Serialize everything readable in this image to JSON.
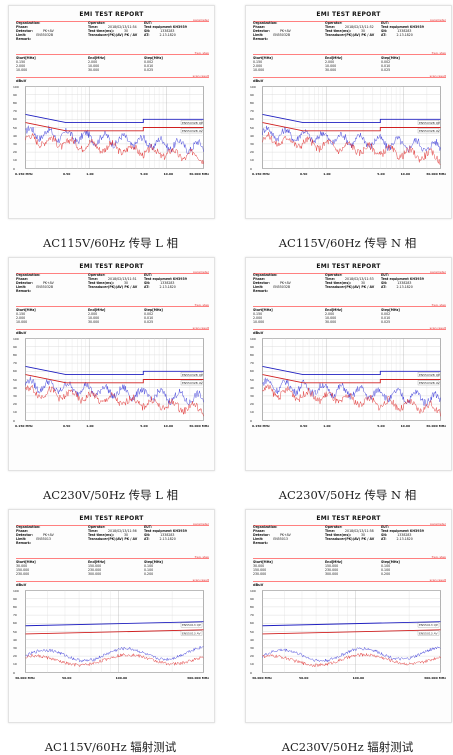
{
  "reports": [
    {
      "title": "EMI TEST REPORT",
      "note_param": "parameter",
      "note_freq": "freq. step",
      "note_scan": "scan result",
      "organization_label": "Organization:",
      "phase_label": "Phase:",
      "detector_label": "Detector:",
      "detector": "PK+AV",
      "limit_label": "Limit:",
      "limit": "EN55032B",
      "remark_label": "Remark:",
      "operator_label": "Operator:",
      "time_label": "Time:",
      "time": "2018/02/13/11:54",
      "test_time_label": "Test time(ms):",
      "test_time": "30",
      "transducer": "Transducer(PK)(AV) PK / AV",
      "eut_label": "EUT:",
      "eut": "Test equipment KH3939",
      "sn_label": "SN:",
      "sn": "1338283",
      "at_label": "AT:",
      "at": "2.13.1820",
      "col_start": "Start[MHz]",
      "col_end": "End[MHz]",
      "col_step": "Step[MHz]",
      "start": [
        "0.150",
        "2.000",
        "10.000"
      ],
      "end": [
        "2.000",
        "10.000",
        "30.000"
      ],
      "step": [
        "0.002",
        "0.010",
        "0.025"
      ],
      "unit": "dBuV",
      "y_ticks": [
        "100",
        "90",
        "80",
        "70",
        "60",
        "50",
        "40",
        "30",
        "20",
        "10",
        "0"
      ],
      "x_ticks": [
        "0.150 MHz",
        "0.50",
        "1.00",
        "5.00",
        "10.00",
        "30.000 MHz"
      ],
      "legend": [
        "EN55032B QP",
        "EN55032B AV"
      ],
      "caption": "AC115V/60Hz 传导 L 相"
    },
    {
      "title": "EMI TEST REPORT",
      "note_param": "parameter",
      "note_freq": "freq. step",
      "note_scan": "scan result",
      "organization_label": "Organization:",
      "phase_label": "Phase:",
      "detector_label": "Detector:",
      "detector": "PK+AV",
      "limit_label": "Limit:",
      "limit": "EN55032B",
      "remark_label": "Remark:",
      "operator_label": "Operator:",
      "time_label": "Time:",
      "time": "2018/02/13/11:52",
      "test_time_label": "Test time(ms):",
      "test_time": "30",
      "transducer": "Transducer(PK)(AV) PK / AV",
      "eut_label": "EUT:",
      "eut": "Test equipment KH3939",
      "sn_label": "SN:",
      "sn": "1338283",
      "at_label": "AT:",
      "at": "2.13.1820",
      "col_start": "Start[MHz]",
      "col_end": "End[MHz]",
      "col_step": "Step[MHz]",
      "start": [
        "0.150",
        "2.000",
        "10.000"
      ],
      "end": [
        "2.000",
        "10.000",
        "30.000"
      ],
      "step": [
        "0.002",
        "0.010",
        "0.025"
      ],
      "unit": "dBuV",
      "y_ticks": [
        "100",
        "90",
        "80",
        "70",
        "60",
        "50",
        "40",
        "30",
        "20",
        "10",
        "0"
      ],
      "x_ticks": [
        "0.150 MHz",
        "0.50",
        "1.00",
        "5.00",
        "10.00",
        "30.000 MHz"
      ],
      "legend": [
        "EN55032B QP",
        "EN55032B AV"
      ],
      "caption": "AC115V/60Hz 传导 N 相"
    },
    {
      "title": "EMI TEST REPORT",
      "note_param": "parameter",
      "note_freq": "freq. step",
      "note_scan": "scan result",
      "organization_label": "Organization:",
      "phase_label": "Phase:",
      "detector_label": "Detector:",
      "detector": "PK+AV",
      "limit_label": "Limit:",
      "limit": "EN55032B",
      "remark_label": "Remark:",
      "operator_label": "Operator:",
      "time_label": "Time:",
      "time": "2018/02/13/11:51",
      "test_time_label": "Test time(ms):",
      "test_time": "30",
      "transducer": "Transducer(PK)(AV) PK / AV",
      "eut_label": "EUT:",
      "eut": "Test equipment KH3939",
      "sn_label": "SN:",
      "sn": "1338283",
      "at_label": "AT:",
      "at": "2.13.1820",
      "col_start": "Start[MHz]",
      "col_end": "End[MHz]",
      "col_step": "Step[MHz]",
      "start": [
        "0.150",
        "2.000",
        "10.000"
      ],
      "end": [
        "2.000",
        "10.000",
        "30.000"
      ],
      "step": [
        "0.002",
        "0.010",
        "0.025"
      ],
      "unit": "dBuV",
      "y_ticks": [
        "100",
        "90",
        "80",
        "70",
        "60",
        "50",
        "40",
        "30",
        "20",
        "10",
        "0"
      ],
      "x_ticks": [
        "0.150 MHz",
        "0.50",
        "1.00",
        "5.00",
        "10.00",
        "30.000 MHz"
      ],
      "legend": [
        "EN55032B QP",
        "EN55032B AV"
      ],
      "caption": "AC230V/50Hz 传导 L 相"
    },
    {
      "title": "EMI TEST REPORT",
      "note_param": "parameter",
      "note_freq": "freq. step",
      "note_scan": "scan result",
      "organization_label": "Organization:",
      "phase_label": "Phase:",
      "detector_label": "Detector:",
      "detector": "PK+AV",
      "limit_label": "Limit:",
      "limit": "EN55032B",
      "remark_label": "Remark:",
      "operator_label": "Operator:",
      "time_label": "Time:",
      "time": "2018/02/13/11:53",
      "test_time_label": "Test time(ms):",
      "test_time": "30",
      "transducer": "Transducer(PK)(AV) PK / AV",
      "eut_label": "EUT:",
      "eut": "Test equipment KH3939",
      "sn_label": "SN:",
      "sn": "1338283",
      "at_label": "AT:",
      "at": "2.13.1820",
      "col_start": "Start[MHz]",
      "col_end": "End[MHz]",
      "col_step": "Step[MHz]",
      "start": [
        "0.150",
        "2.000",
        "10.000"
      ],
      "end": [
        "2.000",
        "10.000",
        "30.000"
      ],
      "step": [
        "0.002",
        "0.010",
        "0.025"
      ],
      "unit": "dBuV",
      "y_ticks": [
        "100",
        "90",
        "80",
        "70",
        "60",
        "50",
        "40",
        "30",
        "20",
        "10",
        "0"
      ],
      "x_ticks": [
        "0.150 MHz",
        "0.50",
        "1.00",
        "5.00",
        "10.00",
        "30.000 MHz"
      ],
      "legend": [
        "EN55032B QP",
        "EN55032B AV"
      ],
      "caption": "AC230V/50Hz 传导 N 相"
    },
    {
      "title": "EMI TEST REPORT",
      "note_param": "parameter",
      "note_freq": "freq. step",
      "note_scan": "scan result",
      "organization_label": "Organization:",
      "phase_label": "Phase:",
      "detector_label": "Detector:",
      "detector": "PK+AV",
      "limit_label": "Limit:",
      "limit": "EN55013",
      "remark_label": "Remark:",
      "operator_label": "Operator:",
      "time_label": "Time:",
      "time": "2018/02/13/11:56",
      "test_time_label": "Test time(ms):",
      "test_time": "30",
      "transducer": "Transducer(PK)(AV) PK / AV",
      "eut_label": "EUT:",
      "eut": "Test equipment KH3939",
      "sn_label": "SN:",
      "sn": "1338283",
      "at_label": "AT:",
      "at": "2.13.1820",
      "col_start": "Start[MHz]",
      "col_end": "End[MHz]",
      "col_step": "Step[MHz]",
      "start": [
        "30.000",
        "150.000",
        "230.000"
      ],
      "end": [
        "150.000",
        "230.000",
        "300.000"
      ],
      "step": [
        "0.100",
        "0.100",
        "0.200"
      ],
      "unit": "dBuV",
      "y_ticks": [
        "100",
        "90",
        "80",
        "70",
        "60",
        "50",
        "40",
        "30",
        "20",
        "10",
        "0"
      ],
      "x_ticks": [
        "30.000 MHz",
        "50.00",
        "100.00",
        "300.000 MHz"
      ],
      "legend": [
        "EN55013 QP",
        "EN55013 AV"
      ],
      "caption": "AC115V/60Hz 辐射测试"
    },
    {
      "title": "EMI TEST REPORT",
      "note_param": "parameter",
      "note_freq": "freq. step",
      "note_scan": "scan result",
      "organization_label": "Organization:",
      "phase_label": "Phase:",
      "detector_label": "Detector:",
      "detector": "PK+AV",
      "limit_label": "Limit:",
      "limit": "EN55013",
      "remark_label": "Remark:",
      "operator_label": "Operator:",
      "time_label": "Time:",
      "time": "2018/02/13/11:58",
      "test_time_label": "Test time(ms):",
      "test_time": "30",
      "transducer": "Transducer(PK)(AV) PK / AV",
      "eut_label": "EUT:",
      "eut": "Test equipment KH3939",
      "sn_label": "SN:",
      "sn": "1338283",
      "at_label": "AT:",
      "at": "2.13.1820",
      "col_start": "Start[MHz]",
      "col_end": "End[MHz]",
      "col_step": "Step[MHz]",
      "start": [
        "30.000",
        "150.000",
        "230.000"
      ],
      "end": [
        "150.000",
        "230.000",
        "300.000"
      ],
      "step": [
        "0.100",
        "0.100",
        "0.200"
      ],
      "unit": "dBuV",
      "y_ticks": [
        "100",
        "90",
        "80",
        "70",
        "60",
        "50",
        "40",
        "30",
        "20",
        "10",
        "0"
      ],
      "x_ticks": [
        "30.000 MHz",
        "50.00",
        "100.00",
        "300.000 MHz"
      ],
      "legend": [
        "EN55013 QP",
        "EN55013 AV"
      ],
      "caption": "AC230V/50Hz 辐射测试"
    }
  ],
  "chart_data": [
    {
      "type": "line",
      "xscale": "log",
      "xlim": [
        0.15,
        30
      ],
      "ylim": [
        0,
        100
      ],
      "series": [
        {
          "name": "EN55032B QP",
          "x": [
            0.15,
            0.5,
            0.5,
            5,
            5,
            30
          ],
          "values": [
            66,
            56,
            56,
            56,
            60,
            60
          ]
        },
        {
          "name": "EN55032B AV",
          "x": [
            0.15,
            0.5,
            0.5,
            5,
            5,
            30
          ],
          "values": [
            56,
            46,
            46,
            46,
            50,
            50
          ]
        }
      ]
    },
    {
      "type": "line",
      "xscale": "log",
      "xlim": [
        0.15,
        30
      ],
      "ylim": [
        0,
        100
      ],
      "series": [
        {
          "name": "EN55032B QP",
          "x": [
            0.15,
            0.5,
            0.5,
            5,
            5,
            30
          ],
          "values": [
            66,
            56,
            56,
            56,
            60,
            60
          ]
        },
        {
          "name": "EN55032B AV",
          "x": [
            0.15,
            0.5,
            0.5,
            5,
            5,
            30
          ],
          "values": [
            56,
            46,
            46,
            46,
            50,
            50
          ]
        }
      ]
    },
    {
      "type": "line",
      "xscale": "log",
      "xlim": [
        0.15,
        30
      ],
      "ylim": [
        0,
        100
      ],
      "series": [
        {
          "name": "EN55032B QP",
          "x": [
            0.15,
            0.5,
            0.5,
            5,
            5,
            30
          ],
          "values": [
            66,
            56,
            56,
            56,
            60,
            60
          ]
        },
        {
          "name": "EN55032B AV",
          "x": [
            0.15,
            0.5,
            0.5,
            5,
            5,
            30
          ],
          "values": [
            56,
            46,
            46,
            46,
            50,
            50
          ]
        }
      ]
    },
    {
      "type": "line",
      "xscale": "log",
      "xlim": [
        0.15,
        30
      ],
      "ylim": [
        0,
        100
      ],
      "series": [
        {
          "name": "EN55032B QP",
          "x": [
            0.15,
            0.5,
            0.5,
            5,
            5,
            30
          ],
          "values": [
            66,
            56,
            56,
            56,
            60,
            60
          ]
        },
        {
          "name": "EN55032B AV",
          "x": [
            0.15,
            0.5,
            0.5,
            5,
            5,
            30
          ],
          "values": [
            56,
            46,
            46,
            46,
            50,
            50
          ]
        }
      ]
    },
    {
      "type": "line",
      "xscale": "log",
      "xlim": [
        30,
        300
      ],
      "ylim": [
        0,
        100
      ],
      "series": [
        {
          "name": "EN55013 QP",
          "x": [
            30,
            300
          ],
          "values": [
            57,
            62
          ]
        },
        {
          "name": "EN55013 AV",
          "x": [
            30,
            300
          ],
          "values": [
            47,
            52
          ]
        }
      ]
    },
    {
      "type": "line",
      "xscale": "log",
      "xlim": [
        30,
        300
      ],
      "ylim": [
        0,
        100
      ],
      "series": [
        {
          "name": "EN55013 QP",
          "x": [
            30,
            300
          ],
          "values": [
            57,
            62
          ]
        },
        {
          "name": "EN55013 AV",
          "x": [
            30,
            300
          ],
          "values": [
            47,
            52
          ]
        }
      ]
    }
  ]
}
